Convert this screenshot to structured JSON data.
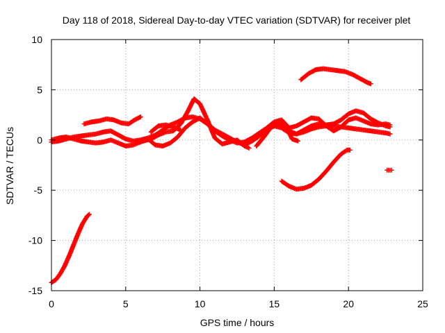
{
  "chart_data": {
    "type": "scatter",
    "title": "Day 118 of 2018, Sidereal Day-to-day VTEC variation (SDTVAR) for receiver plet",
    "xlabel": "GPS time / hours",
    "ylabel": "SDTVAR / TECUs",
    "xlim": [
      0,
      25
    ],
    "ylim": [
      -15,
      10
    ],
    "xticks": [
      0,
      5,
      10,
      15,
      20,
      25
    ],
    "yticks": [
      -15,
      -10,
      -5,
      0,
      5,
      10
    ],
    "grid": true,
    "marker": "+",
    "color": "#ff0000",
    "series": [
      {
        "name": "track-a",
        "x": [
          0.0,
          0.3,
          0.6,
          0.9,
          1.2,
          1.5,
          1.8,
          2.1,
          2.4,
          2.55
        ],
        "y": [
          -14.2,
          -13.9,
          -13.3,
          -12.5,
          -11.5,
          -10.4,
          -9.3,
          -8.3,
          -7.6,
          -7.4
        ]
      },
      {
        "name": "track-b",
        "x": [
          0.0,
          0.5,
          1.0,
          1.5,
          2.0,
          2.5,
          3.0,
          3.5,
          4.0,
          4.5,
          5.0,
          5.5,
          6.0,
          6.5,
          7.0,
          7.5,
          8.0,
          8.5,
          9.0,
          9.5,
          10.0,
          10.5,
          11.0,
          11.5,
          12.0,
          12.5,
          13.0,
          13.5,
          14.0,
          14.5,
          15.0,
          15.5,
          16.0,
          16.5,
          17.0,
          17.5,
          18.0,
          18.5,
          19.0,
          19.5,
          20.0,
          20.5,
          21.0,
          21.5,
          22.0,
          22.5,
          22.8
        ],
        "y": [
          -0.2,
          -0.1,
          0.1,
          0.3,
          0.4,
          0.5,
          0.6,
          0.8,
          0.9,
          0.5,
          0.1,
          -0.1,
          0.0,
          0.2,
          0.5,
          1.0,
          1.5,
          1.8,
          2.2,
          2.3,
          2.1,
          1.6,
          0.9,
          0.4,
          0.0,
          -0.3,
          -0.2,
          0.2,
          0.7,
          1.2,
          1.6,
          1.4,
          0.9,
          0.6,
          0.8,
          1.1,
          1.3,
          1.4,
          1.4,
          1.3,
          1.2,
          1.1,
          1.0,
          0.9,
          0.8,
          0.7,
          0.6
        ]
      },
      {
        "name": "track-c",
        "x": [
          0.0,
          0.5,
          1.0,
          1.5,
          2.0,
          2.5,
          3.0,
          3.5,
          4.0,
          4.5,
          5.0,
          5.5,
          6.0,
          6.5,
          7.0,
          7.5,
          8.0,
          8.5,
          9.0,
          9.5,
          10.0,
          10.5,
          11.0,
          11.5,
          12.0,
          12.5,
          13.0,
          13.5,
          14.0,
          14.5,
          15.0,
          15.5,
          16.0,
          16.5,
          17.0,
          17.5,
          18.0,
          18.5,
          19.0,
          19.5,
          20.0,
          20.5,
          21.0,
          21.5,
          22.0,
          22.5,
          22.8
        ],
        "y": [
          0.0,
          0.2,
          0.3,
          0.1,
          -0.1,
          -0.2,
          -0.3,
          -0.2,
          0.0,
          -0.3,
          -0.6,
          -0.5,
          -0.2,
          0.1,
          -0.5,
          -0.6,
          -0.3,
          0.3,
          1.2,
          1.8,
          2.2,
          1.6,
          1.0,
          0.6,
          0.2,
          -0.2,
          -0.5,
          -0.1,
          0.4,
          1.0,
          1.4,
          1.2,
          0.7,
          0.6,
          1.0,
          1.4,
          1.6,
          1.5,
          1.6,
          2.0,
          2.6,
          2.9,
          2.7,
          2.1,
          1.7,
          1.4,
          1.3
        ]
      },
      {
        "name": "track-d",
        "x": [
          2.2,
          2.7,
          3.2,
          3.7,
          4.2,
          4.7,
          5.2,
          5.6,
          6.0
        ],
        "y": [
          1.6,
          1.8,
          1.9,
          2.1,
          2.0,
          1.7,
          1.6,
          2.0,
          2.3
        ]
      },
      {
        "name": "track-e",
        "x": [
          5.7,
          6.2,
          6.7,
          7.2,
          7.7,
          8.2,
          8.7,
          9.2,
          9.6,
          10.0,
          10.5,
          11.0,
          11.5,
          12.0,
          12.5,
          13.0,
          13.3
        ],
        "y": [
          -0.2,
          -0.1,
          0.1,
          0.5,
          0.8,
          0.9,
          1.6,
          2.9,
          4.1,
          3.6,
          2.0,
          0.2,
          -0.4,
          -0.2,
          0.0,
          -0.6,
          -0.8
        ]
      },
      {
        "name": "track-f",
        "x": [
          6.7,
          7.2,
          7.7,
          8.2,
          8.7
        ],
        "y": [
          0.8,
          1.4,
          1.5,
          1.3,
          1.0
        ]
      },
      {
        "name": "track-g",
        "x": [
          13.0,
          13.5,
          14.0,
          14.5,
          15.0,
          15.5,
          16.0,
          16.5,
          17.0,
          17.5,
          18.0,
          18.5,
          19.0,
          19.5,
          20.0,
          20.5,
          21.0,
          21.5,
          22.0,
          22.5,
          22.8
        ],
        "y": [
          -0.4,
          -0.1,
          0.4,
          1.2,
          1.8,
          2.0,
          1.2,
          1.4,
          1.8,
          2.2,
          2.1,
          1.4,
          0.9,
          1.3,
          2.0,
          2.2,
          1.9,
          1.6,
          1.5,
          1.6,
          1.5
        ]
      },
      {
        "name": "track-h",
        "x": [
          13.8,
          14.3,
          14.8,
          15.3,
          15.8,
          16.2,
          16.6
        ],
        "y": [
          -0.6,
          0.3,
          1.3,
          1.9,
          1.4,
          0.1,
          -0.1
        ]
      },
      {
        "name": "track-i",
        "x": [
          15.5,
          16.0,
          16.5,
          17.0,
          17.5,
          18.0,
          18.5,
          19.0,
          19.5,
          19.9,
          20.1
        ],
        "y": [
          -4.1,
          -4.6,
          -4.9,
          -4.8,
          -4.5,
          -3.9,
          -3.1,
          -2.2,
          -1.4,
          -1.0,
          -1.0
        ]
      },
      {
        "name": "track-j",
        "x": [
          16.8,
          17.3,
          17.8,
          18.3,
          18.8,
          19.3,
          19.8,
          20.3,
          20.8,
          21.3,
          21.5
        ],
        "y": [
          6.0,
          6.6,
          7.0,
          7.1,
          7.0,
          6.9,
          6.8,
          6.5,
          6.1,
          5.7,
          5.6
        ]
      },
      {
        "name": "track-k",
        "x": [
          22.6,
          22.7,
          22.8,
          22.9
        ],
        "y": [
          -3.0,
          -3.0,
          -3.0,
          -3.0
        ]
      }
    ]
  }
}
